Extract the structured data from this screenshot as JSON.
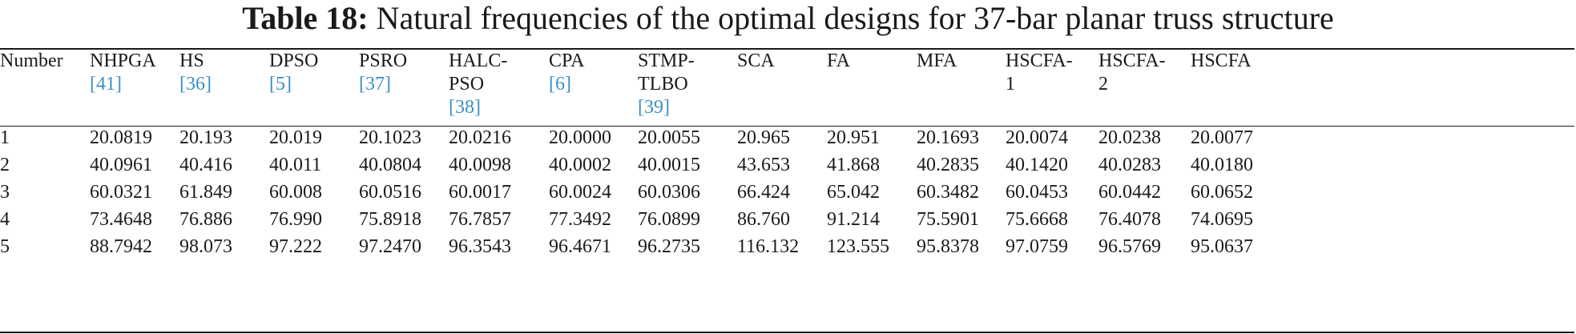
{
  "caption": {
    "label": "Table 18:",
    "text": "Natural frequencies of the optimal designs for 37-bar planar truss structure"
  },
  "table": {
    "headers": [
      {
        "lines": [
          "Number"
        ],
        "ref": ""
      },
      {
        "lines": [
          "NHPGA"
        ],
        "ref": "41"
      },
      {
        "lines": [
          "HS"
        ],
        "ref": "36"
      },
      {
        "lines": [
          "DPSO"
        ],
        "ref": "5"
      },
      {
        "lines": [
          "PSRO"
        ],
        "ref": "37"
      },
      {
        "lines": [
          "HALC-",
          "PSO"
        ],
        "ref": "38"
      },
      {
        "lines": [
          "CPA"
        ],
        "ref": "6"
      },
      {
        "lines": [
          "STMP-",
          "TLBO"
        ],
        "ref": "39"
      },
      {
        "lines": [
          "SCA"
        ],
        "ref": ""
      },
      {
        "lines": [
          "FA"
        ],
        "ref": ""
      },
      {
        "lines": [
          "MFA"
        ],
        "ref": ""
      },
      {
        "lines": [
          "HSCFA-",
          "1"
        ],
        "ref": ""
      },
      {
        "lines": [
          "HSCFA-",
          "2"
        ],
        "ref": ""
      },
      {
        "lines": [
          "HSCFA"
        ],
        "ref": ""
      }
    ],
    "rows": [
      [
        "1",
        "20.0819",
        "20.193",
        "20.019",
        "20.1023",
        "20.0216",
        "20.0000",
        "20.0055",
        "20.965",
        "20.951",
        "20.1693",
        "20.0074",
        "20.0238",
        "20.0077"
      ],
      [
        "2",
        "40.0961",
        "40.416",
        "40.011",
        "40.0804",
        "40.0098",
        "40.0002",
        "40.0015",
        "43.653",
        "41.868",
        "40.2835",
        "40.1420",
        "40.0283",
        "40.0180"
      ],
      [
        "3",
        "60.0321",
        "61.849",
        "60.008",
        "60.0516",
        "60.0017",
        "60.0024",
        "60.0306",
        "66.424",
        "65.042",
        "60.3482",
        "60.0453",
        "60.0442",
        "60.0652"
      ],
      [
        "4",
        "73.4648",
        "76.886",
        "76.990",
        "75.8918",
        "76.7857",
        "77.3492",
        "76.0899",
        "86.760",
        "91.214",
        "75.5901",
        "75.6668",
        "76.4078",
        "74.0695"
      ],
      [
        "5",
        "88.7942",
        "98.073",
        "97.222",
        "97.2470",
        "96.3543",
        "96.4671",
        "96.2735",
        "116.132",
        "123.555",
        "95.8378",
        "97.0759",
        "96.5769",
        "95.0637"
      ]
    ]
  }
}
